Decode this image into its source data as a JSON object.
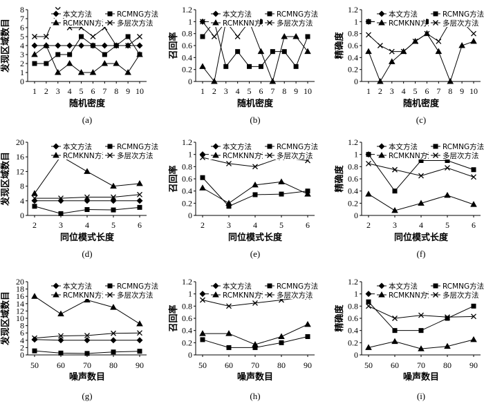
{
  "figure": {
    "legend_labels": [
      "本文方法",
      "RCMNG方法",
      "RCMKNN方法",
      "多层次方法"
    ],
    "marker_style": [
      "diamond",
      "square",
      "triangle",
      "x-cross"
    ],
    "line_color": "#000000"
  },
  "chart_data": [
    {
      "id": "a",
      "caption": "(a)",
      "type": "line",
      "xlabel": "随机密度",
      "ylabel": "发现区域数目",
      "x": [
        1,
        2,
        3,
        4,
        5,
        6,
        7,
        8,
        9,
        10
      ],
      "xticks": [
        "1",
        "2",
        "3",
        "4",
        "5",
        "6",
        "7",
        "8",
        "9",
        "10"
      ],
      "ylim": [
        0,
        8
      ],
      "yticks": [
        "0",
        "1",
        "2",
        "3",
        "4",
        "5",
        "6",
        "7",
        "8"
      ],
      "series": [
        {
          "name": "本文方法",
          "values": [
            4,
            4,
            4,
            4,
            4,
            4,
            4,
            4,
            4,
            4
          ]
        },
        {
          "name": "RCMNG方法",
          "values": [
            2,
            2,
            3,
            3,
            5,
            4,
            3,
            4,
            5,
            3
          ]
        },
        {
          "name": "RCMKNN方法",
          "values": [
            3,
            4,
            1,
            2,
            1,
            1,
            2,
            2,
            1,
            3
          ]
        },
        {
          "name": "多层次方法",
          "values": [
            5,
            5,
            8,
            6,
            6,
            5,
            6,
            4,
            4,
            5
          ]
        }
      ]
    },
    {
      "id": "b",
      "caption": "(b)",
      "type": "line",
      "xlabel": "随机密度",
      "ylabel": "召回率",
      "x": [
        1,
        2,
        3,
        4,
        5,
        6,
        7,
        8,
        9,
        10
      ],
      "xticks": [
        "1",
        "2",
        "3",
        "4",
        "5",
        "6",
        "7",
        "8",
        "9",
        "10"
      ],
      "ylim": [
        0,
        1.2
      ],
      "yticks": [
        "0",
        "0.2",
        "0.4",
        "0.6",
        "0.8",
        "1",
        "1.2"
      ],
      "series": [
        {
          "name": "本文方法",
          "values": [
            1,
            1,
            1,
            1,
            1,
            1,
            1,
            1,
            1,
            1
          ]
        },
        {
          "name": "RCMNG方法",
          "values": [
            0.75,
            1,
            0.25,
            0.5,
            0.25,
            0.25,
            0.5,
            0.5,
            0.25,
            0.75
          ]
        },
        {
          "name": "RCMKNN方法",
          "values": [
            0.25,
            0,
            1,
            1,
            1,
            0.5,
            0,
            0.75,
            0.75,
            0.5
          ]
        },
        {
          "name": "多层次方法",
          "values": [
            1,
            0.75,
            1,
            0.75,
            1,
            1,
            1,
            1,
            1,
            1
          ]
        }
      ]
    },
    {
      "id": "c",
      "caption": "(c)",
      "type": "line",
      "xlabel": "随机密度",
      "ylabel": "精确度",
      "x": [
        1,
        2,
        3,
        4,
        5,
        6,
        7,
        8,
        9,
        10
      ],
      "xticks": [
        "1",
        "2",
        "3",
        "4",
        "5",
        "6",
        "7",
        "8",
        "9",
        "10"
      ],
      "ylim": [
        0,
        1.2
      ],
      "yticks": [
        "0",
        "0.2",
        "0.4",
        "0.6",
        "0.8",
        "1",
        "1.2"
      ],
      "series": [
        {
          "name": "本文方法",
          "values": [
            1,
            1,
            1,
            1,
            1,
            1,
            1,
            1,
            1,
            1
          ]
        },
        {
          "name": "RCMNG方法",
          "values": [
            1,
            1,
            1,
            1,
            1,
            1,
            1,
            1,
            1,
            1
          ]
        },
        {
          "name": "RCMKNN方法",
          "values": [
            0.5,
            0,
            0.33,
            0.5,
            0.67,
            0.8,
            0.5,
            0,
            0.6,
            0.67
          ]
        },
        {
          "name": "多层次方法",
          "values": [
            0.78,
            0.6,
            0.5,
            0.5,
            0.67,
            0.8,
            0.67,
            1,
            1,
            0.8
          ]
        }
      ]
    },
    {
      "id": "d",
      "caption": "(d)",
      "type": "line",
      "xlabel": "同位模式长度",
      "ylabel": "发现区域数目",
      "x": [
        2,
        3,
        4,
        5,
        6
      ],
      "xticks": [
        "2",
        "3",
        "4",
        "5",
        "6"
      ],
      "ylim": [
        0,
        20
      ],
      "yticks": [
        "0",
        "4",
        "8",
        "12",
        "16",
        "20"
      ],
      "series": [
        {
          "name": "本文方法",
          "values": [
            4,
            4,
            4,
            4,
            4
          ]
        },
        {
          "name": "RCMNG方法",
          "values": [
            2.5,
            0.5,
            1.6,
            1.5,
            2.2
          ]
        },
        {
          "name": "RCMKNN方法",
          "values": [
            6,
            16.2,
            12,
            8,
            8.7
          ]
        },
        {
          "name": "多层次方法",
          "values": [
            4.7,
            4.7,
            5,
            5,
            5.7
          ]
        }
      ]
    },
    {
      "id": "e",
      "caption": "(e)",
      "type": "line",
      "xlabel": "同位模式长度",
      "ylabel": "召回率",
      "x": [
        2,
        3,
        4,
        5,
        6
      ],
      "xticks": [
        "2",
        "3",
        "4",
        "5",
        "6"
      ],
      "ylim": [
        0,
        1.2
      ],
      "yticks": [
        "0",
        "0.2",
        "0.4",
        "0.6",
        "0.8",
        "1",
        "1.2"
      ],
      "series": [
        {
          "name": "本文方法",
          "values": [
            1,
            1,
            1,
            1,
            1
          ]
        },
        {
          "name": "RCMNG方法",
          "values": [
            0.62,
            0.15,
            0.34,
            0.35,
            0.4
          ]
        },
        {
          "name": "RCMKNN方法",
          "values": [
            0.45,
            0.2,
            0.5,
            0.55,
            0.35
          ]
        },
        {
          "name": "多层次方法",
          "values": [
            0.95,
            0.85,
            0.8,
            0.95,
            0.9
          ]
        }
      ]
    },
    {
      "id": "f",
      "caption": "(f)",
      "type": "line",
      "xlabel": "同位模式长度",
      "ylabel": "精确度",
      "x": [
        2,
        3,
        4,
        5,
        6
      ],
      "xticks": [
        "2",
        "3",
        "4",
        "5",
        "6"
      ],
      "ylim": [
        0,
        1.2
      ],
      "yticks": [
        "0",
        "0.2",
        "0.4",
        "0.6",
        "0.8",
        "1",
        "1.2"
      ],
      "series": [
        {
          "name": "本文方法",
          "values": [
            1,
            1,
            1,
            1,
            1
          ]
        },
        {
          "name": "RCMNG方法",
          "values": [
            1,
            0.4,
            0.9,
            0.9,
            0.75
          ]
        },
        {
          "name": "RCMKNN方法",
          "values": [
            0.35,
            0.08,
            0.2,
            0.33,
            0.18
          ]
        },
        {
          "name": "多层次方法",
          "values": [
            0.85,
            0.75,
            0.65,
            0.78,
            0.63
          ]
        }
      ]
    },
    {
      "id": "g",
      "caption": "(g)",
      "type": "line",
      "xlabel": "噪声数目",
      "ylabel": "发现区域数目",
      "x": [
        50,
        60,
        70,
        80,
        90
      ],
      "xticks": [
        "50",
        "60",
        "70",
        "80",
        "90"
      ],
      "ylim": [
        0,
        20
      ],
      "yticks": [
        "0",
        "2",
        "4",
        "6",
        "8",
        "10",
        "12",
        "14",
        "16",
        "18",
        "20"
      ],
      "series": [
        {
          "name": "本文方法",
          "values": [
            4.2,
            4,
            4,
            4,
            4
          ]
        },
        {
          "name": "RCMNG方法",
          "values": [
            1.1,
            0.5,
            0.4,
            0.8,
            1
          ]
        },
        {
          "name": "RCMKNN方法",
          "values": [
            16,
            11.2,
            15,
            13,
            8.5
          ]
        },
        {
          "name": "多层次方法",
          "values": [
            4.6,
            5.2,
            5.3,
            5.9,
            6
          ]
        }
      ]
    },
    {
      "id": "h",
      "caption": "(h)",
      "type": "line",
      "xlabel": "噪声数目",
      "ylabel": "召回率",
      "x": [
        50,
        60,
        70,
        80,
        90
      ],
      "xticks": [
        "50",
        "60",
        "70",
        "80",
        "90"
      ],
      "ylim": [
        0,
        1.2
      ],
      "yticks": [
        "0",
        "0.2",
        "0.4",
        "0.6",
        "0.8",
        "1",
        "1.2"
      ],
      "series": [
        {
          "name": "本文方法",
          "values": [
            1,
            1,
            1,
            1,
            1
          ]
        },
        {
          "name": "RCMNG方法",
          "values": [
            0.25,
            0.12,
            0.12,
            0.2,
            0.3
          ]
        },
        {
          "name": "RCMKNN方法",
          "values": [
            0.35,
            0.35,
            0.17,
            0.3,
            0.5
          ]
        },
        {
          "name": "多层次方法",
          "values": [
            0.9,
            0.8,
            0.85,
            0.9,
            0.95
          ]
        }
      ]
    },
    {
      "id": "i",
      "caption": "(i)",
      "type": "line",
      "xlabel": "噪声数目",
      "ylabel": "精确度",
      "x": [
        50,
        60,
        70,
        80,
        90
      ],
      "xticks": [
        "50",
        "60",
        "70",
        "80",
        "90"
      ],
      "ylim": [
        0,
        1.2
      ],
      "yticks": [
        "0",
        "0.2",
        "0.4",
        "0.6",
        "0.8",
        "1",
        "1.2"
      ],
      "series": [
        {
          "name": "本文方法",
          "values": [
            1,
            1,
            1,
            1,
            1
          ]
        },
        {
          "name": "RCMNG方法",
          "values": [
            0.87,
            0.4,
            0.4,
            0.6,
            0.8
          ]
        },
        {
          "name": "RCMKNN方法",
          "values": [
            0.12,
            0.22,
            0.1,
            0.14,
            0.25
          ]
        },
        {
          "name": "多层次方法",
          "values": [
            0.8,
            0.6,
            0.65,
            0.62,
            0.63
          ]
        }
      ]
    }
  ]
}
